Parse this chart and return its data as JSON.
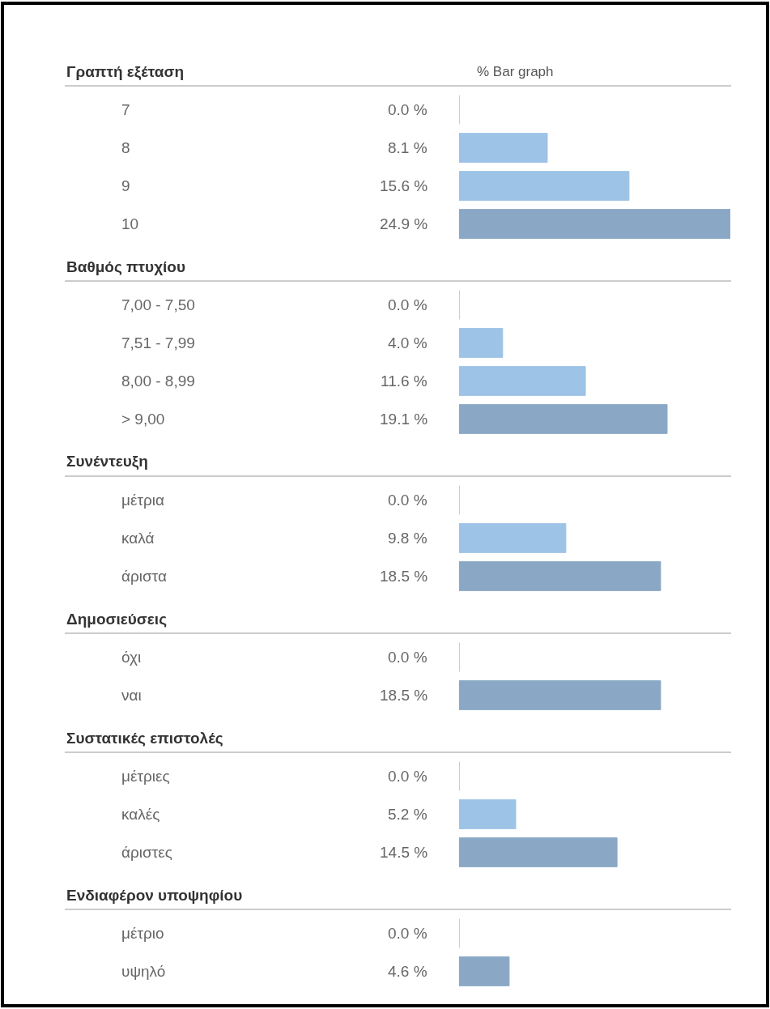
{
  "chart_data": [
    {
      "type": "bar",
      "orientation": "horizontal",
      "title": "Γραπτή εξέταση",
      "subtitle": "% Bar graph",
      "categories": [
        "7",
        "8",
        "9",
        "10"
      ],
      "values": [
        0.0,
        8.1,
        15.6,
        24.9
      ],
      "value_labels": [
        "0.0 %",
        "8.1 %",
        "15.6 %",
        "24.9 %"
      ],
      "colors": [
        "#9dc3e6",
        "#9dc3e6",
        "#9dc3e6",
        "#8aa8c5"
      ]
    },
    {
      "type": "bar",
      "orientation": "horizontal",
      "title": "Βαθμός πτυχίου",
      "categories": [
        "7,00 - 7,50",
        "7,51 - 7,99",
        "8,00 - 8,99",
        "> 9,00"
      ],
      "values": [
        0.0,
        4.0,
        11.6,
        19.1
      ],
      "value_labels": [
        "0.0 %",
        "4.0 %",
        "11.6 %",
        "19.1 %"
      ],
      "colors": [
        "#9dc3e6",
        "#9dc3e6",
        "#9dc3e6",
        "#8aa8c5"
      ]
    },
    {
      "type": "bar",
      "orientation": "horizontal",
      "title": "Συνέντευξη",
      "categories": [
        "μέτρια",
        "καλά",
        "άριστα"
      ],
      "values": [
        0.0,
        9.8,
        18.5
      ],
      "value_labels": [
        "0.0 %",
        "9.8 %",
        "18.5 %"
      ],
      "colors": [
        "#9dc3e6",
        "#9dc3e6",
        "#8aa8c5"
      ]
    },
    {
      "type": "bar",
      "orientation": "horizontal",
      "title": "Δημοσιεύσεις",
      "categories": [
        "όχι",
        "ναι"
      ],
      "values": [
        0.0,
        18.5
      ],
      "value_labels": [
        "0.0 %",
        "18.5 %"
      ],
      "colors": [
        "#9dc3e6",
        "#8aa8c5"
      ]
    },
    {
      "type": "bar",
      "orientation": "horizontal",
      "title": "Συστατικές επιστολές",
      "categories": [
        "μέτριες",
        "καλές",
        "άριστες"
      ],
      "values": [
        0.0,
        5.2,
        14.5
      ],
      "value_labels": [
        "0.0 %",
        "5.2 %",
        "14.5 %"
      ],
      "colors": [
        "#9dc3e6",
        "#9dc3e6",
        "#8aa8c5"
      ]
    },
    {
      "type": "bar",
      "orientation": "horizontal",
      "title": "Ενδιαφέρον υποψηφίου",
      "categories": [
        "μέτριο",
        "υψηλό"
      ],
      "values": [
        0.0,
        4.6
      ],
      "value_labels": [
        "0.0 %",
        "4.6 %"
      ],
      "colors": [
        "#9dc3e6",
        "#8aa8c5"
      ]
    }
  ]
}
